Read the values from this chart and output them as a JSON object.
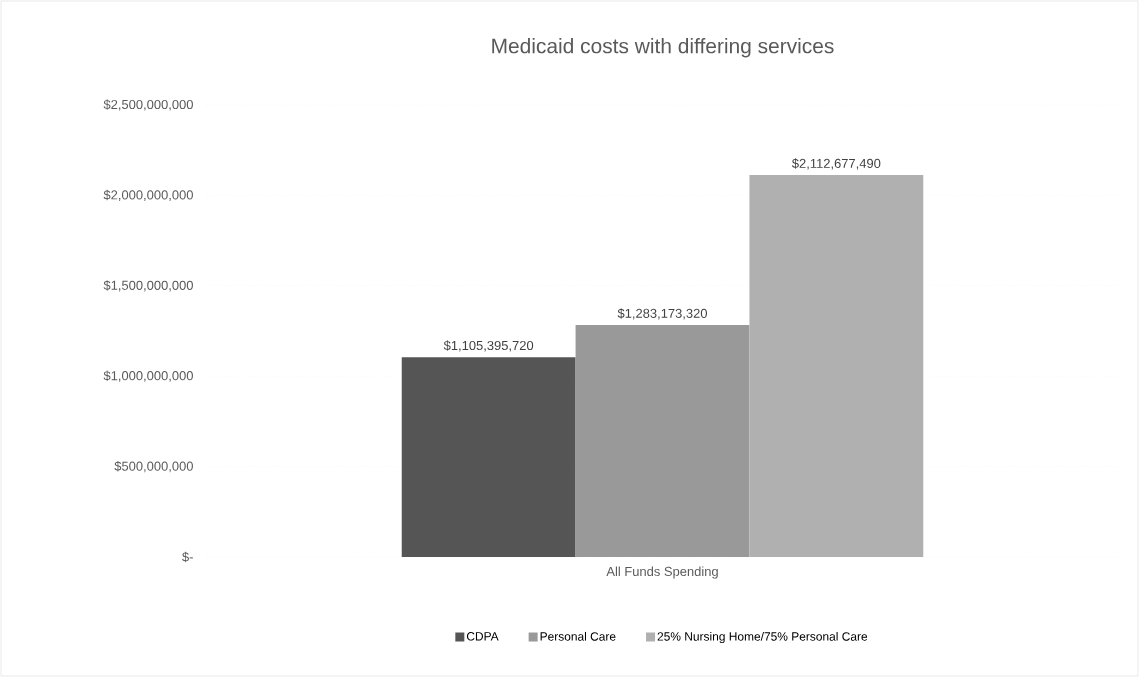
{
  "chart_data": {
    "type": "bar",
    "title": "Medicaid costs with differing services",
    "categories": [
      "All Funds Spending"
    ],
    "series": [
      {
        "name": "CDPA",
        "color": "#555555",
        "values": [
          1105395720
        ],
        "value_labels": [
          "$1,105,395,720"
        ]
      },
      {
        "name": "Personal Care",
        "color": "#999999",
        "values": [
          1283173320
        ],
        "value_labels": [
          "$1,283,173,320"
        ]
      },
      {
        "name": "25% Nursing Home/75% Personal Care",
        "color": "#b0b0b0",
        "values": [
          2112677490
        ],
        "value_labels": [
          "$2,112,677,490"
        ]
      }
    ],
    "ylim": [
      0,
      2500000000
    ],
    "yticks": [
      {
        "value": 0,
        "label": "$-"
      },
      {
        "value": 500000000,
        "label": "$500,000,000"
      },
      {
        "value": 1000000000,
        "label": "$1,000,000,000"
      },
      {
        "value": 1500000000,
        "label": "$1,500,000,000"
      },
      {
        "value": 2000000000,
        "label": "$2,000,000,000"
      },
      {
        "value": 2500000000,
        "label": "$2,500,000,000"
      }
    ],
    "grid": "y",
    "legend": "bottom"
  }
}
